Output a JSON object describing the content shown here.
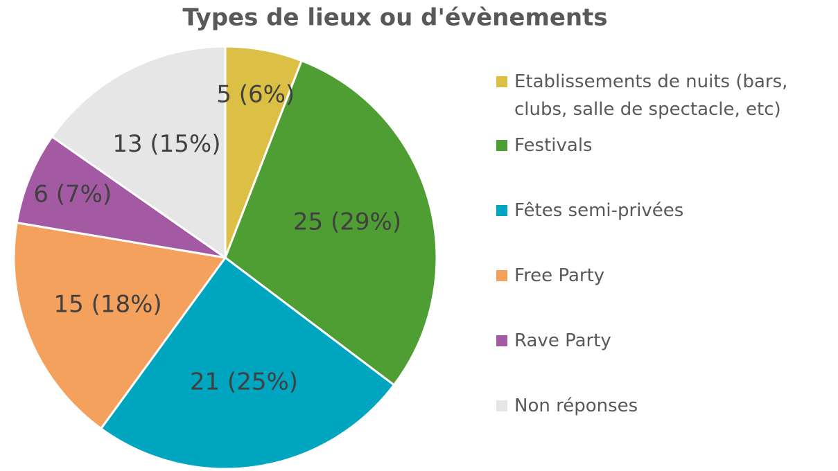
{
  "chart_data": {
    "type": "pie",
    "title": "Types de lieux ou d'évènements",
    "categories": [
      "Etablissements de nuits (bars, clubs, salle de spectacle, etc)",
      "Festivals",
      "Fêtes semi-privées",
      "Free Party",
      "Rave Party",
      "Non réponses"
    ],
    "values": [
      5,
      25,
      21,
      15,
      6,
      13
    ],
    "value_labels": [
      "5 (6%)",
      "25 (29%)",
      "21 (25%)",
      "15 (18%)",
      "6 (7%)",
      "13 (15%)"
    ],
    "colors": [
      "#dcbf45",
      "#4e9e34",
      "#00a5c0",
      "#f4a15d",
      "#a45aa3",
      "#e6e6e6"
    ],
    "legend": "right"
  }
}
